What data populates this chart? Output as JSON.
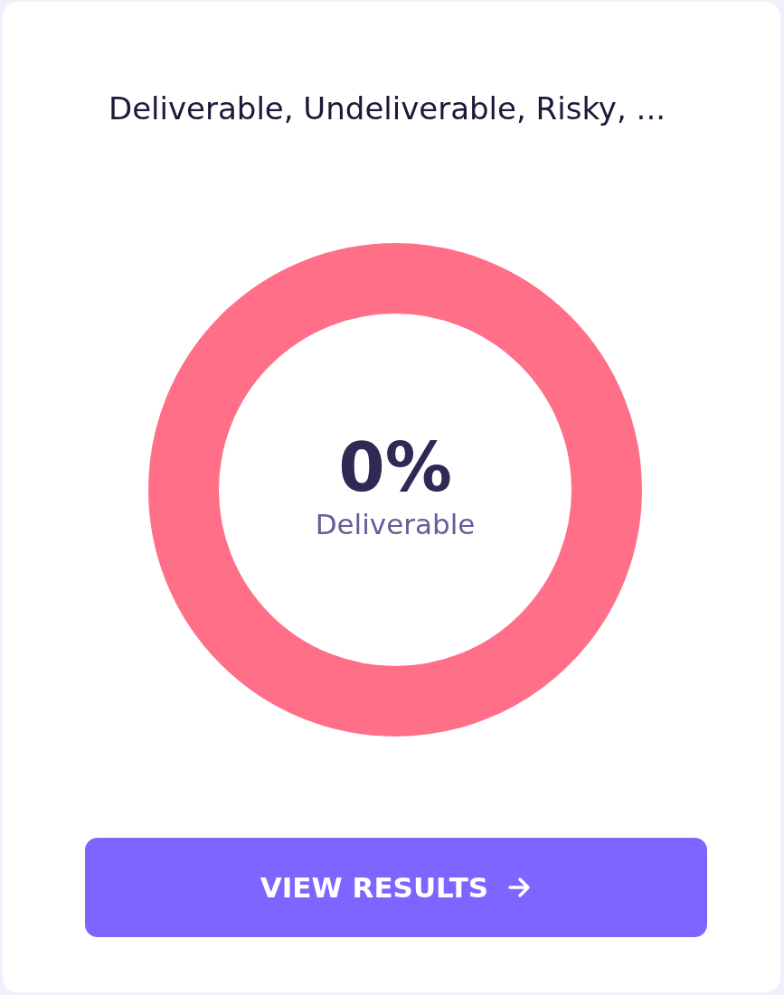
{
  "chart_data": {
    "type": "donut",
    "title": "Deliverable, Undeliverable, Risky, ...",
    "categories": [
      "Deliverable",
      null
    ],
    "values": [
      0,
      100
    ],
    "colors": [
      "#8064ff",
      "#ff7088"
    ],
    "annotations": [
      "0%",
      "VIEW RESULTS"
    ]
  }
}
